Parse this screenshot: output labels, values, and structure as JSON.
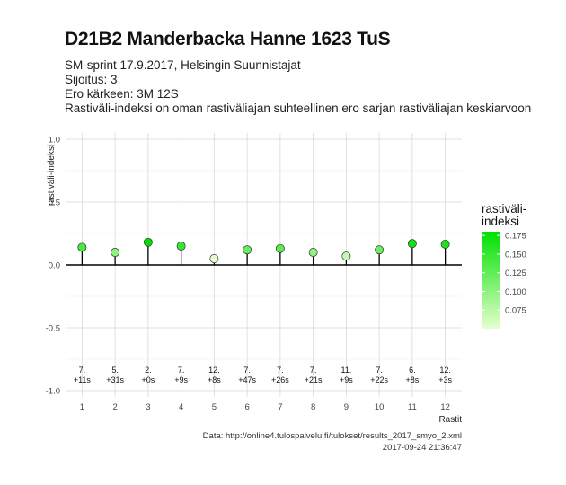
{
  "header": {
    "title": "D21B2 Manderbacka Hanne 1623 TuS",
    "subtitle_lines": [
      "SM-sprint 17.9.2017, Helsingin Suunnistajat",
      "Sijoitus: 3",
      "Ero kärkeen: 3M 12S",
      "Rastiväli-indeksi on oman rastiväliajan suhteellinen ero sarjan rastiväliajan keskiarvoon"
    ]
  },
  "caption": {
    "line1": "Data: http://online4.tulospalvelu.fi/tulokset/results_2017_smyo_2.xml",
    "line2": "2017-09-24 21:36:47"
  },
  "legend": {
    "title": "rastiväli-\nindeksi",
    "ticks": [
      "0.175",
      "0.150",
      "0.125",
      "0.100",
      "0.075"
    ],
    "tick_values": [
      0.175,
      0.15,
      0.125,
      0.1,
      0.075
    ],
    "color_low": "#e6ffcf",
    "color_high": "#00e000"
  },
  "chart_data": {
    "type": "scatter",
    "xlabel": "Rastit",
    "ylabel": "rastiväli-indeksi",
    "categories": [
      "1",
      "2",
      "3",
      "4",
      "5",
      "6",
      "7",
      "8",
      "9",
      "10",
      "11",
      "12"
    ],
    "values": [
      0.14,
      0.1,
      0.18,
      0.15,
      0.05,
      0.12,
      0.13,
      0.1,
      0.07,
      0.12,
      0.17,
      0.165
    ],
    "placements": [
      "7.",
      "5.",
      "2.",
      "7.",
      "12.",
      "7.",
      "7.",
      "7.",
      "11.",
      "7.",
      "6.",
      "12."
    ],
    "time_diffs": [
      "+11s",
      "+31s",
      "+0s",
      "+9s",
      "+8s",
      "+47s",
      "+26s",
      "+21s",
      "+9s",
      "+22s",
      "+8s",
      "+3s"
    ],
    "ylim": [
      -1.05,
      1.05
    ],
    "yticks": [
      "1.0",
      "0.5",
      "0.0",
      "-0.5",
      "-1.0"
    ],
    "ytick_values": [
      1.0,
      0.5,
      0.0,
      -0.5,
      -1.0
    ],
    "grid": true,
    "legend_position": "right"
  }
}
